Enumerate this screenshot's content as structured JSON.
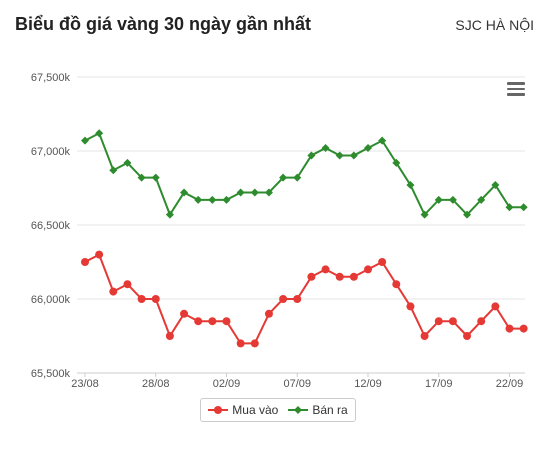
{
  "header": {
    "title": "Biểu đồ giá vàng 30 ngày gần nhất",
    "location": "SJC HÀ NỘI"
  },
  "colors": {
    "buy": "#e53935",
    "sell": "#2e8b2e",
    "grid": "#e6e6e6",
    "axis_text": "#555555"
  },
  "chart_data": {
    "type": "line",
    "x": [
      "23/08",
      "24/08",
      "25/08",
      "26/08",
      "27/08",
      "28/08",
      "29/08",
      "30/08",
      "31/08",
      "01/09",
      "02/09",
      "03/09",
      "04/09",
      "05/09",
      "06/09",
      "07/09",
      "08/09",
      "09/09",
      "10/09",
      "11/09",
      "12/09",
      "13/09",
      "14/09",
      "15/09",
      "16/09",
      "17/09",
      "18/09",
      "19/09",
      "20/09",
      "21/09",
      "22/09",
      "23/09"
    ],
    "x_tick_labels": [
      "23/08",
      "28/08",
      "02/09",
      "07/09",
      "12/09",
      "17/09",
      "22/09"
    ],
    "y_tick_labels": [
      "65,500k",
      "66,000k",
      "66,500k",
      "67,000k",
      "67,500k"
    ],
    "y_ticks": [
      65500,
      66000,
      66500,
      67000,
      67500
    ],
    "ylim": [
      65500,
      67500
    ],
    "grid": true,
    "legend_position": "bottom-center",
    "series": [
      {
        "name": "Mua vào",
        "marker": "circle",
        "values": [
          66250,
          66300,
          66050,
          66100,
          66000,
          66000,
          65750,
          65900,
          65850,
          65850,
          65850,
          65700,
          65700,
          65900,
          66000,
          66000,
          66150,
          66200,
          66150,
          66150,
          66200,
          66250,
          66100,
          65950,
          65750,
          65850,
          65850,
          65750,
          65850,
          65950,
          65800,
          65800
        ]
      },
      {
        "name": "Bán ra",
        "marker": "diamond",
        "values": [
          67070,
          67120,
          66870,
          66920,
          66820,
          66820,
          66570,
          66720,
          66670,
          66670,
          66670,
          66720,
          66720,
          66720,
          66820,
          66820,
          66970,
          67020,
          66970,
          66970,
          67020,
          67070,
          66920,
          66770,
          66570,
          66670,
          66670,
          66570,
          66670,
          66770,
          66620,
          66620
        ]
      }
    ]
  }
}
